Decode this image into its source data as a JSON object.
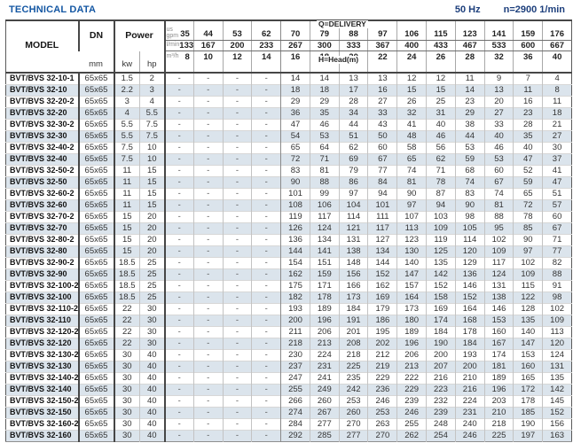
{
  "page": {
    "title": "TECHNICAL DATA",
    "frequency": "50 Hz",
    "speed": "n=2900 1/min"
  },
  "table": {
    "headers": {
      "model": "MODEL",
      "dn": "DN",
      "dn_unit": "mm",
      "power": "Power",
      "power_units": [
        "kw",
        "hp"
      ],
      "delivery_label": "Q=DELIVERY",
      "head_label": "H=Head(m)",
      "unit_rows": [
        {
          "unit": "us\ngpm",
          "values": [
            "35",
            "44",
            "53",
            "62",
            "70",
            "79",
            "88",
            "97",
            "106",
            "115",
            "123",
            "141",
            "159",
            "176"
          ]
        },
        {
          "unit": "l/min",
          "values": [
            "133",
            "167",
            "200",
            "233",
            "267",
            "300",
            "333",
            "367",
            "400",
            "433",
            "467",
            "533",
            "600",
            "667"
          ]
        },
        {
          "unit": "m³/h",
          "values": [
            "8",
            "10",
            "12",
            "14",
            "16",
            "18",
            "20",
            "22",
            "24",
            "26",
            "28",
            "32",
            "36",
            "40"
          ]
        }
      ]
    },
    "rows": [
      {
        "model": "BVT/BVS 32-10-1",
        "dn": "65x65",
        "kw": "1.5",
        "hp": "2",
        "heads": [
          "-",
          "-",
          "-",
          "-",
          "14",
          "14",
          "13",
          "13",
          "12",
          "12",
          "11",
          "9",
          "7",
          "4"
        ]
      },
      {
        "model": "BVT/BVS 32-10",
        "dn": "65x65",
        "kw": "2.2",
        "hp": "3",
        "heads": [
          "-",
          "-",
          "-",
          "-",
          "18",
          "18",
          "17",
          "16",
          "15",
          "15",
          "14",
          "13",
          "11",
          "8"
        ]
      },
      {
        "model": "BVT/BVS 32-20-2",
        "dn": "65x65",
        "kw": "3",
        "hp": "4",
        "heads": [
          "-",
          "-",
          "-",
          "-",
          "29",
          "29",
          "28",
          "27",
          "26",
          "25",
          "23",
          "20",
          "16",
          "11"
        ]
      },
      {
        "model": "BVT/BVS 32-20",
        "dn": "65x65",
        "kw": "4",
        "hp": "5.5",
        "heads": [
          "-",
          "-",
          "-",
          "-",
          "36",
          "35",
          "34",
          "33",
          "32",
          "31",
          "29",
          "27",
          "23",
          "18"
        ]
      },
      {
        "model": "BVT/BVS 32-30-2",
        "dn": "65x65",
        "kw": "5.5",
        "hp": "7.5",
        "heads": [
          "-",
          "-",
          "-",
          "-",
          "47",
          "46",
          "44",
          "43",
          "41",
          "40",
          "38",
          "33",
          "28",
          "21"
        ]
      },
      {
        "model": "BVT/BVS 32-30",
        "dn": "65x65",
        "kw": "5.5",
        "hp": "7.5",
        "heads": [
          "-",
          "-",
          "-",
          "-",
          "54",
          "53",
          "51",
          "50",
          "48",
          "46",
          "44",
          "40",
          "35",
          "27"
        ]
      },
      {
        "model": "BVT/BVS 32-40-2",
        "dn": "65x65",
        "kw": "7.5",
        "hp": "10",
        "heads": [
          "-",
          "-",
          "-",
          "-",
          "65",
          "64",
          "62",
          "60",
          "58",
          "56",
          "53",
          "46",
          "40",
          "30"
        ]
      },
      {
        "model": "BVT/BVS 32-40",
        "dn": "65x65",
        "kw": "7.5",
        "hp": "10",
        "heads": [
          "-",
          "-",
          "-",
          "-",
          "72",
          "71",
          "69",
          "67",
          "65",
          "62",
          "59",
          "53",
          "47",
          "37"
        ]
      },
      {
        "model": "BVT/BVS 32-50-2",
        "dn": "65x65",
        "kw": "11",
        "hp": "15",
        "heads": [
          "-",
          "-",
          "-",
          "-",
          "83",
          "81",
          "79",
          "77",
          "74",
          "71",
          "68",
          "60",
          "52",
          "41"
        ]
      },
      {
        "model": "BVT/BVS 32-50",
        "dn": "65x65",
        "kw": "11",
        "hp": "15",
        "heads": [
          "-",
          "-",
          "-",
          "-",
          "90",
          "88",
          "86",
          "84",
          "81",
          "78",
          "74",
          "67",
          "59",
          "47"
        ]
      },
      {
        "model": "BVT/BVS 32-60-2",
        "dn": "65x65",
        "kw": "11",
        "hp": "15",
        "heads": [
          "-",
          "-",
          "-",
          "-",
          "101",
          "99",
          "97",
          "94",
          "90",
          "87",
          "83",
          "74",
          "65",
          "51"
        ]
      },
      {
        "model": "BVT/BVS 32-60",
        "dn": "65x65",
        "kw": "11",
        "hp": "15",
        "heads": [
          "-",
          "-",
          "-",
          "-",
          "108",
          "106",
          "104",
          "101",
          "97",
          "94",
          "90",
          "81",
          "72",
          "57"
        ]
      },
      {
        "model": "BVT/BVS 32-70-2",
        "dn": "65x65",
        "kw": "15",
        "hp": "20",
        "heads": [
          "-",
          "-",
          "-",
          "-",
          "119",
          "117",
          "114",
          "111",
          "107",
          "103",
          "98",
          "88",
          "78",
          "60"
        ]
      },
      {
        "model": "BVT/BVS 32-70",
        "dn": "65x65",
        "kw": "15",
        "hp": "20",
        "heads": [
          "-",
          "-",
          "-",
          "-",
          "126",
          "124",
          "121",
          "117",
          "113",
          "109",
          "105",
          "95",
          "85",
          "67"
        ]
      },
      {
        "model": "BVT/BVS 32-80-2",
        "dn": "65x65",
        "kw": "15",
        "hp": "20",
        "heads": [
          "-",
          "-",
          "-",
          "-",
          "136",
          "134",
          "131",
          "127",
          "123",
          "119",
          "114",
          "102",
          "90",
          "71"
        ]
      },
      {
        "model": "BVT/BVS 32-80",
        "dn": "65x65",
        "kw": "15",
        "hp": "20",
        "heads": [
          "-",
          "-",
          "-",
          "-",
          "144",
          "141",
          "138",
          "134",
          "130",
          "125",
          "120",
          "109",
          "97",
          "77"
        ]
      },
      {
        "model": "BVT/BVS 32-90-2",
        "dn": "65x65",
        "kw": "18.5",
        "hp": "25",
        "heads": [
          "-",
          "-",
          "-",
          "-",
          "154",
          "151",
          "148",
          "144",
          "140",
          "135",
          "129",
          "117",
          "102",
          "82"
        ]
      },
      {
        "model": "BVT/BVS 32-90",
        "dn": "65x65",
        "kw": "18.5",
        "hp": "25",
        "heads": [
          "-",
          "-",
          "-",
          "-",
          "162",
          "159",
          "156",
          "152",
          "147",
          "142",
          "136",
          "124",
          "109",
          "88"
        ]
      },
      {
        "model": "BVT/BVS 32-100-2",
        "dn": "65x65",
        "kw": "18.5",
        "hp": "25",
        "heads": [
          "-",
          "-",
          "-",
          "-",
          "175",
          "171",
          "166",
          "162",
          "157",
          "152",
          "146",
          "131",
          "115",
          "91"
        ]
      },
      {
        "model": "BVT/BVS 32-100",
        "dn": "65x65",
        "kw": "18.5",
        "hp": "25",
        "heads": [
          "-",
          "-",
          "-",
          "-",
          "182",
          "178",
          "173",
          "169",
          "164",
          "158",
          "152",
          "138",
          "122",
          "98"
        ]
      },
      {
        "model": "BVT/BVS 32-110-2",
        "dn": "65x65",
        "kw": "22",
        "hp": "30",
        "heads": [
          "-",
          "-",
          "-",
          "-",
          "193",
          "189",
          "184",
          "179",
          "173",
          "169",
          "164",
          "146",
          "128",
          "102"
        ]
      },
      {
        "model": "BVT/BVS 32-110",
        "dn": "65x65",
        "kw": "22",
        "hp": "30",
        "heads": [
          "-",
          "-",
          "-",
          "-",
          "200",
          "196",
          "191",
          "186",
          "180",
          "174",
          "168",
          "153",
          "135",
          "109"
        ]
      },
      {
        "model": "BVT/BVS 32-120-2",
        "dn": "65x65",
        "kw": "22",
        "hp": "30",
        "heads": [
          "-",
          "-",
          "-",
          "-",
          "211",
          "206",
          "201",
          "195",
          "189",
          "184",
          "178",
          "160",
          "140",
          "113"
        ]
      },
      {
        "model": "BVT/BVS 32-120",
        "dn": "65x65",
        "kw": "22",
        "hp": "30",
        "heads": [
          "-",
          "-",
          "-",
          "-",
          "218",
          "213",
          "208",
          "202",
          "196",
          "190",
          "184",
          "167",
          "147",
          "120"
        ]
      },
      {
        "model": "BVT/BVS 32-130-2",
        "dn": "65x65",
        "kw": "30",
        "hp": "40",
        "heads": [
          "-",
          "-",
          "-",
          "-",
          "230",
          "224",
          "218",
          "212",
          "206",
          "200",
          "193",
          "174",
          "153",
          "124"
        ]
      },
      {
        "model": "BVT/BVS 32-130",
        "dn": "65x65",
        "kw": "30",
        "hp": "40",
        "heads": [
          "-",
          "-",
          "-",
          "-",
          "237",
          "231",
          "225",
          "219",
          "213",
          "207",
          "200",
          "181",
          "160",
          "131"
        ]
      },
      {
        "model": "BVT/BVS 32-140-2",
        "dn": "65x65",
        "kw": "30",
        "hp": "40",
        "heads": [
          "-",
          "-",
          "-",
          "-",
          "247",
          "241",
          "235",
          "229",
          "222",
          "216",
          "210",
          "189",
          "165",
          "135"
        ]
      },
      {
        "model": "BVT/BVS 32-140",
        "dn": "65x65",
        "kw": "30",
        "hp": "40",
        "heads": [
          "-",
          "-",
          "-",
          "-",
          "255",
          "249",
          "242",
          "236",
          "229",
          "223",
          "216",
          "196",
          "172",
          "142"
        ]
      },
      {
        "model": "BVT/BVS 32-150-2",
        "dn": "65x65",
        "kw": "30",
        "hp": "40",
        "heads": [
          "-",
          "-",
          "-",
          "-",
          "266",
          "260",
          "253",
          "246",
          "239",
          "232",
          "224",
          "203",
          "178",
          "145"
        ]
      },
      {
        "model": "BVT/BVS 32-150",
        "dn": "65x65",
        "kw": "30",
        "hp": "40",
        "heads": [
          "-",
          "-",
          "-",
          "-",
          "274",
          "267",
          "260",
          "253",
          "246",
          "239",
          "231",
          "210",
          "185",
          "152"
        ]
      },
      {
        "model": "BVT/BVS 32-160-2",
        "dn": "65x65",
        "kw": "30",
        "hp": "40",
        "heads": [
          "-",
          "-",
          "-",
          "-",
          "284",
          "277",
          "270",
          "263",
          "255",
          "248",
          "240",
          "218",
          "190",
          "156"
        ]
      },
      {
        "model": "BVT/BVS 32-160",
        "dn": "65x65",
        "kw": "30",
        "hp": "40",
        "heads": [
          "-",
          "-",
          "-",
          "-",
          "292",
          "285",
          "277",
          "270",
          "262",
          "254",
          "246",
          "225",
          "197",
          "163"
        ]
      }
    ]
  },
  "colors": {
    "title_blue": "#1457a3",
    "freq_blue": "#1d3f7c",
    "row_alt": "#dbe4ec",
    "border_dark": "#464646",
    "border_light": "#c3c3c3"
  }
}
